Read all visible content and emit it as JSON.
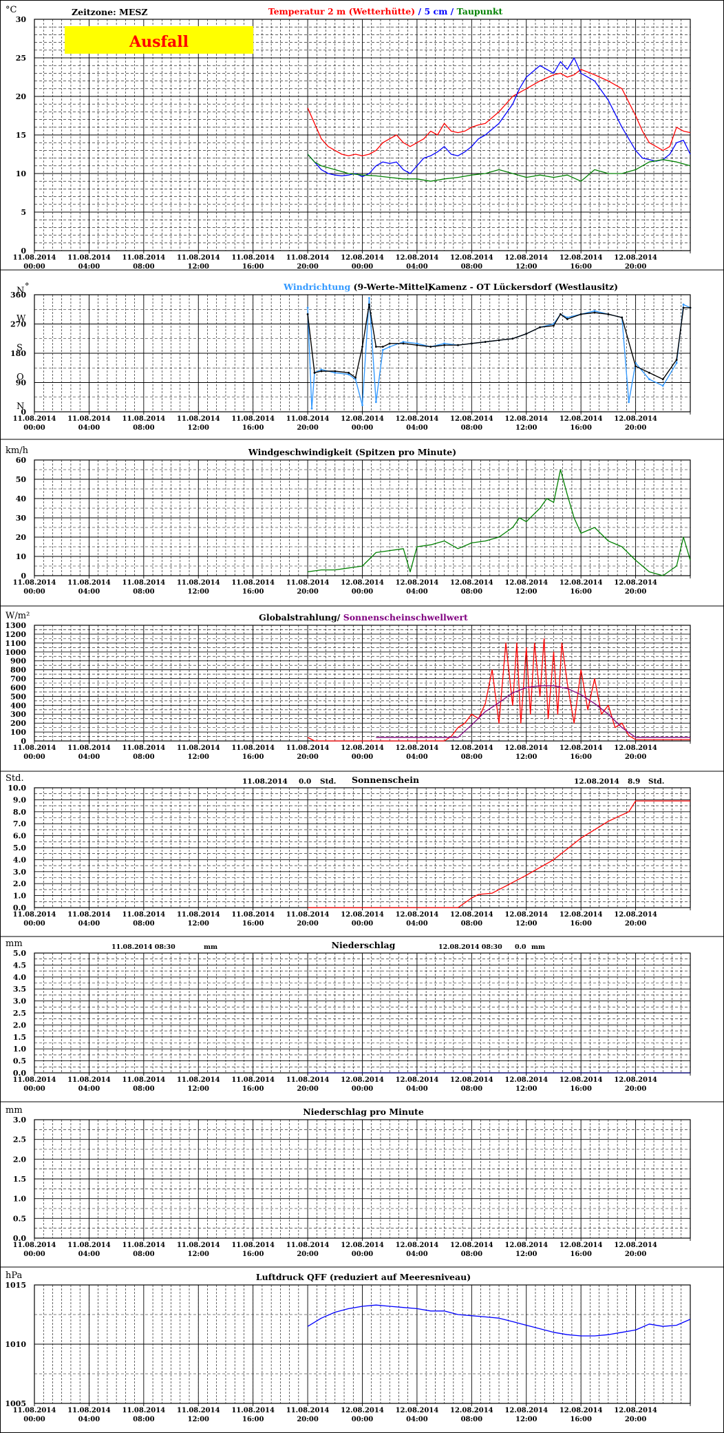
{
  "page": {
    "timezone_label": "Zeitzone: MESZ",
    "failure_label": "Ausfall",
    "colors": {
      "frame": "#000000",
      "grid": "#000000",
      "failure_bg": "#ffff00",
      "failure_text": "#ff0000",
      "red": "#ff0000",
      "blue": "#0000ff",
      "green": "#008000",
      "lightblue": "#3399ff",
      "black": "#000000",
      "purple": "#800080",
      "darkblue": "#000080"
    }
  },
  "x_axis": {
    "labels": [
      {
        "date": "11.08.2014",
        "time": "00:00"
      },
      {
        "date": "11.08.2014",
        "time": "04:00"
      },
      {
        "date": "11.08.2014",
        "time": "08:00"
      },
      {
        "date": "11.08.2014",
        "time": "12:00"
      },
      {
        "date": "11.08.2014",
        "time": "16:00"
      },
      {
        "date": "11.08.2014",
        "time": "20:00"
      },
      {
        "date": "12.08.2014",
        "time": "00:00"
      },
      {
        "date": "12.08.2014",
        "time": "04:00"
      },
      {
        "date": "12.08.2014",
        "time": "08:00"
      },
      {
        "date": "12.08.2014",
        "time": "12:00"
      },
      {
        "date": "12.08.2014",
        "time": "16:00"
      },
      {
        "date": "12.08.2014",
        "time": "20:00"
      }
    ]
  },
  "chart_data": [
    {
      "type": "line",
      "unit": "°C",
      "title_parts": [
        {
          "text": "Temperatur 2 m (Wetterhütte)",
          "color": "#ff0000"
        },
        {
          "text": "  /  ",
          "color": "#0000ff"
        },
        {
          "text": "5 cm",
          "color": "#0000ff"
        },
        {
          "text": " / ",
          "color": "#0000ff"
        },
        {
          "text": "Taupunkt",
          "color": "#008000"
        }
      ],
      "ylim": [
        0,
        30
      ],
      "yticks": [
        "0",
        "5",
        "10",
        "15",
        "20",
        "25",
        "30"
      ],
      "x_unit": "hours since 11.08.2014 00:00",
      "series": [
        {
          "name": "Temperatur 2 m (Wetterhütte)",
          "color": "#ff0000",
          "x": [
            20,
            20.5,
            21,
            21.5,
            22,
            22.5,
            23,
            23.5,
            24,
            24.5,
            25,
            25.5,
            26,
            26.5,
            27,
            27.5,
            28,
            28.5,
            29,
            29.5,
            30,
            30.5,
            31,
            31.5,
            32,
            32.5,
            33,
            34,
            35,
            36,
            37,
            38,
            38.5,
            39,
            39.5,
            40,
            41,
            42,
            43,
            44,
            44.5,
            45,
            45.5,
            46,
            46.5,
            47,
            47.5,
            48
          ],
          "y": [
            18.5,
            16.5,
            14.5,
            13.5,
            13,
            12.5,
            12.3,
            12.5,
            12.3,
            12.5,
            13,
            14,
            14.5,
            15,
            14,
            13.5,
            14,
            14.5,
            15.5,
            15,
            16.5,
            15.5,
            15.3,
            15.5,
            16,
            16.3,
            16.5,
            18,
            20,
            21,
            22,
            22.8,
            23,
            22.5,
            22.8,
            23.5,
            22.8,
            22,
            21,
            17.5,
            15.5,
            14,
            13.5,
            13,
            13.5,
            16,
            15.5,
            15.3
          ]
        },
        {
          "name": "5 cm",
          "color": "#0000ff",
          "x": [
            20,
            20.5,
            21,
            21.5,
            22,
            22.5,
            23,
            23.5,
            24,
            24.5,
            25,
            25.5,
            26,
            26.5,
            27,
            27.5,
            28,
            28.5,
            29,
            29.5,
            30,
            30.5,
            31,
            31.5,
            32,
            32.5,
            33,
            34,
            35,
            35.5,
            36,
            37,
            38,
            38.5,
            39,
            39.5,
            40,
            41,
            42,
            43,
            44,
            44.5,
            45,
            45.5,
            46,
            46.5,
            47,
            47.5,
            48
          ],
          "y": [
            12.5,
            11.5,
            10.5,
            10,
            9.8,
            9.7,
            9.8,
            10,
            9.6,
            10,
            11,
            11.5,
            11.3,
            11.5,
            10.5,
            10,
            11,
            12,
            12.3,
            12.8,
            13.5,
            12.5,
            12.3,
            12.8,
            13.5,
            14.5,
            15,
            16.5,
            19,
            21,
            22.5,
            24,
            23,
            24.5,
            23.5,
            25,
            23,
            22,
            19.5,
            16,
            13,
            12,
            11.8,
            11.6,
            11.8,
            12.5,
            14,
            14.3,
            12.5
          ]
        },
        {
          "name": "Taupunkt",
          "color": "#008000",
          "x": [
            20,
            20.5,
            21,
            22,
            23,
            24,
            25,
            26,
            27,
            28,
            29,
            30,
            31,
            32,
            33,
            34,
            35,
            36,
            37,
            38,
            39,
            40,
            41,
            42,
            43,
            44,
            45,
            46,
            47,
            48
          ],
          "y": [
            12.5,
            11.5,
            11,
            10.5,
            10,
            9.8,
            9.7,
            9.5,
            9.3,
            9.3,
            9.0,
            9.3,
            9.5,
            9.8,
            10,
            10.5,
            10,
            9.5,
            9.8,
            9.5,
            9.8,
            9.0,
            10.5,
            10,
            10,
            10.5,
            11.5,
            11.8,
            11.5,
            11.0
          ]
        }
      ]
    },
    {
      "type": "scatter",
      "title_parts": [
        {
          "text": "Windrichtung",
          "color": "#3399ff"
        },
        {
          "text": " (9-Werte-Mittel)",
          "color": "#000000"
        }
      ],
      "station": "Kamenz - OT Lückersdorf (Westlausitz)",
      "ylim": [
        0,
        360
      ],
      "yticks": [
        "0",
        "90",
        "180",
        "270",
        "360"
      ],
      "direction_labels": [
        {
          "label": "N",
          "value": 360
        },
        {
          "label": "W",
          "value": 270
        },
        {
          "label": "S",
          "value": 180
        },
        {
          "label": "O",
          "value": 90
        },
        {
          "label": "N",
          "value": 0
        }
      ],
      "unit_circle": "°",
      "x_unit": "hours since 11.08.2014 00:00",
      "series": [
        {
          "name": "Windrichtung",
          "color": "#3399ff",
          "x": [
            20,
            20.3,
            20.5,
            21,
            22,
            23,
            23.5,
            24,
            24.5,
            25,
            25.5,
            26,
            27,
            28,
            29,
            30,
            31,
            32,
            33,
            34,
            35,
            36,
            37,
            38,
            38.5,
            39,
            40,
            41,
            42,
            43,
            43.5,
            44,
            45,
            46,
            47,
            47.5,
            48
          ],
          "y": [
            320,
            10,
            120,
            130,
            120,
            115,
            100,
            20,
            350,
            30,
            190,
            200,
            215,
            210,
            200,
            210,
            205,
            210,
            215,
            220,
            225,
            240,
            260,
            270,
            300,
            290,
            300,
            310,
            300,
            290,
            30,
            150,
            100,
            80,
            150,
            330,
            320
          ]
        },
        {
          "name": "9-Werte-Mittel",
          "color": "#000000",
          "x": [
            20,
            20.5,
            21,
            22,
            23,
            23.5,
            24,
            24.5,
            25,
            25.5,
            26,
            27,
            28,
            29,
            30,
            31,
            32,
            33,
            34,
            35,
            36,
            37,
            38,
            38.5,
            39,
            40,
            41,
            42,
            43,
            44,
            45,
            46,
            47,
            47.5,
            48
          ],
          "y": [
            300,
            120,
            125,
            125,
            120,
            105,
            200,
            330,
            200,
            200,
            210,
            210,
            205,
            200,
            205,
            205,
            210,
            215,
            220,
            225,
            240,
            260,
            265,
            300,
            285,
            300,
            305,
            300,
            290,
            140,
            120,
            100,
            160,
            320,
            320
          ]
        }
      ]
    },
    {
      "type": "line",
      "unit": "km/h",
      "title_parts": [
        {
          "text": "Windgeschwindigkeit (Spitzen pro Minute)",
          "color": "#000000"
        }
      ],
      "ylim": [
        0,
        60
      ],
      "yticks": [
        "0",
        "10",
        "20",
        "30",
        "40",
        "50",
        "60"
      ],
      "x_unit": "hours since 11.08.2014 00:00",
      "series": [
        {
          "name": "Windgeschwindigkeit",
          "color": "#008000",
          "x": [
            20,
            21,
            22,
            23,
            24,
            25,
            26,
            27,
            27.5,
            28,
            29,
            30,
            31,
            32,
            33,
            34,
            35,
            35.5,
            36,
            37,
            37.5,
            38,
            38.5,
            39,
            39.5,
            40,
            41,
            42,
            43,
            44,
            45,
            46,
            47,
            47.5,
            48
          ],
          "y": [
            2,
            3,
            3,
            4,
            5,
            12,
            13,
            14,
            2,
            15,
            16,
            18,
            14,
            17,
            18,
            20,
            25,
            30,
            28,
            35,
            40,
            38,
            55,
            42,
            30,
            22,
            25,
            18,
            15,
            8,
            2,
            0,
            5,
            20,
            8
          ]
        }
      ]
    },
    {
      "type": "line",
      "unit": "W/m²",
      "title_parts": [
        {
          "text": "Globalstrahlung/ ",
          "color": "#000000"
        },
        {
          "text": "Sonnenscheinschwellwert",
          "color": "#800080"
        }
      ],
      "ylim": [
        0,
        1300
      ],
      "yticks": [
        "0",
        "100",
        "200",
        "300",
        "400",
        "500",
        "600",
        "700",
        "800",
        "900",
        "1000",
        "1100",
        "1200",
        "1300"
      ],
      "x_unit": "hours since 11.08.2014 00:00",
      "series": [
        {
          "name": "Globalstrahlung",
          "color": "#ff0000",
          "x": [
            20,
            20.5,
            30,
            30.5,
            31,
            31.5,
            32,
            32.5,
            33,
            33.5,
            34,
            34.5,
            35,
            35.3,
            35.6,
            36,
            36.3,
            36.6,
            37,
            37.3,
            37.6,
            38,
            38.3,
            38.6,
            39,
            39.5,
            40,
            40.5,
            41,
            41.5,
            42,
            42.5,
            43,
            43.5,
            44,
            48
          ],
          "y": [
            40,
            0,
            0,
            50,
            150,
            200,
            300,
            250,
            420,
            800,
            200,
            1100,
            400,
            1100,
            200,
            1050,
            300,
            1100,
            500,
            1150,
            250,
            1000,
            300,
            1100,
            650,
            200,
            800,
            350,
            700,
            300,
            400,
            150,
            200,
            60,
            15,
            15
          ]
        },
        {
          "name": "Sonnenscheinschwellwert",
          "color": "#800080",
          "x": [
            25,
            31,
            32,
            33,
            34,
            35,
            36,
            37,
            38,
            39,
            40,
            41,
            42,
            43,
            44,
            48
          ],
          "y": [
            40,
            40,
            180,
            330,
            430,
            540,
            600,
            620,
            620,
            590,
            520,
            420,
            300,
            150,
            40,
            40
          ]
        }
      ]
    },
    {
      "type": "line",
      "unit": "Std.",
      "title_parts": [
        {
          "text": "Sonnenschein",
          "color": "#000000"
        }
      ],
      "day_totals": [
        {
          "date": "11.08.2014",
          "value": "0.0",
          "unit": "Std."
        },
        {
          "date": "12.08.2014",
          "value": "8.9",
          "unit": "Std."
        }
      ],
      "ylim": [
        0,
        10
      ],
      "yticks": [
        "0.0",
        "1.0",
        "2.0",
        "3.0",
        "4.0",
        "5.0",
        "6.0",
        "7.0",
        "8.0",
        "9.0",
        "10.0"
      ],
      "x_unit": "hours since 11.08.2014 00:00",
      "series": [
        {
          "name": "Sonnenschein",
          "color": "#ff0000",
          "x": [
            20,
            31,
            32,
            32.5,
            33.5,
            34.5,
            36,
            38,
            40,
            42,
            43.5,
            44,
            48
          ],
          "y": [
            0,
            0,
            0.8,
            1.1,
            1.2,
            1.8,
            2.7,
            4.0,
            5.8,
            7.2,
            8.0,
            8.9,
            8.9
          ]
        }
      ]
    },
    {
      "type": "line",
      "unit": "mm",
      "title_parts": [
        {
          "text": "Niederschlag",
          "color": "#000000"
        }
      ],
      "period_totals": [
        {
          "period": "11.08.2014 08:30",
          "value": "",
          "unit": "mm"
        },
        {
          "period": "12.08.2014 08:30",
          "value": "0.0",
          "unit": "mm"
        }
      ],
      "ylim": [
        0,
        5
      ],
      "yticks": [
        "0.0",
        "0.5",
        "1.0",
        "1.5",
        "2.0",
        "2.5",
        "3.0",
        "3.5",
        "4.0",
        "4.5",
        "5.0"
      ],
      "x_unit": "hours since 11.08.2014 00:00",
      "series": [
        {
          "name": "Niederschlag",
          "color": "#000080",
          "x": [
            20,
            48
          ],
          "y": [
            0,
            0
          ]
        }
      ]
    },
    {
      "type": "line",
      "unit": "mm",
      "title_parts": [
        {
          "text": "Niederschlag pro Minute",
          "color": "#000000"
        }
      ],
      "ylim": [
        0,
        3
      ],
      "yticks": [
        "0.0",
        "0.5",
        "1.0",
        "1.5",
        "2.0",
        "2.5",
        "3.0"
      ],
      "series": []
    },
    {
      "type": "line",
      "unit": "hPa",
      "title_parts": [
        {
          "text": "Luftdruck QFF (reduziert auf Meeresniveau)",
          "color": "#000000"
        }
      ],
      "ylim": [
        1005,
        1015
      ],
      "yticks": [
        "1005",
        "1010",
        "1015"
      ],
      "x_unit": "hours since 11.08.2014 00:00",
      "series": [
        {
          "name": "Luftdruck QFF",
          "color": "#0000ff",
          "x": [
            20,
            21,
            22,
            23,
            24,
            25,
            26,
            27,
            28,
            29,
            30,
            31,
            32,
            33,
            34,
            35,
            36,
            37,
            38,
            39,
            40,
            41,
            42,
            43,
            44,
            45,
            46,
            47,
            48
          ],
          "y": [
            1011.5,
            1012.2,
            1012.7,
            1013.0,
            1013.2,
            1013.3,
            1013.2,
            1013.1,
            1013.0,
            1012.8,
            1012.8,
            1012.5,
            1012.4,
            1012.3,
            1012.2,
            1011.9,
            1011.6,
            1011.3,
            1011.0,
            1010.8,
            1010.7,
            1010.7,
            1010.8,
            1011.0,
            1011.2,
            1011.7,
            1011.5,
            1011.6,
            1012.1
          ]
        }
      ]
    }
  ]
}
